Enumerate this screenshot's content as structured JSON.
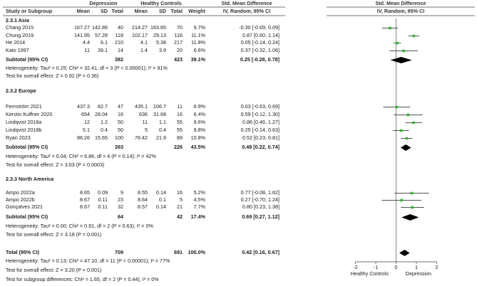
{
  "header": {
    "group1": "Depression",
    "group2": "Healthy Controls",
    "effect_title": "Std. Mean Difference",
    "effect_title_plot": "Std. Mean Difference",
    "study_col": "Study or Subgroup",
    "mean": "Mean",
    "sd": "SD",
    "total": "Total",
    "weight": "Weight",
    "method": "IV, Random, 95% CI",
    "method_plot": "IV, Random, 95% CI"
  },
  "subgroups": [
    {
      "title": "2.3.1 Asia",
      "studies": [
        {
          "name": "Chang 2015",
          "m1": "167.27",
          "sd1": "142.86",
          "n1": "40",
          "m2": "214.27",
          "sd2": "163.65",
          "n2": "70",
          "weight": "9.7%",
          "ci": "-0.30 [-0.69, 0.09]"
        },
        {
          "name": "Chung 2019",
          "m1": "141.95",
          "sd1": "57.28",
          "n1": "118",
          "m2": "102.17",
          "sd2": "29.13",
          "n2": "116",
          "weight": "11.1%",
          "ci": "0.87 [0.60, 1.14]"
        },
        {
          "name": "He 2014",
          "m1": "4.4",
          "sd1": "6.1",
          "n1": "210",
          "m2": "4.1",
          "sd2": "5.38",
          "n2": "217",
          "weight": "11.8%",
          "ci": "0.05 [-0.14, 0.24]"
        },
        {
          "name": "Kato 1997",
          "m1": "11",
          "sd1": "39.1",
          "n1": "14",
          "m2": "1.4",
          "sd2": "3.9",
          "n2": "20",
          "weight": "6.6%",
          "ci": "0.37 [-0.32, 1.06]"
        }
      ],
      "subtotal": {
        "label": "Subtotal (95% CI)",
        "n1": "382",
        "n2": "423",
        "weight": "39.1%",
        "ci": "0.25 [-0.28, 0.78]"
      },
      "heterogeneity": "Heterogeneity: Tau² = 0.25; Chi² = 32.41, df = 3 (P < 0.00001); I² = 91%",
      "overall": "Test for overall effect: Z = 0.92 (P = 0.36)"
    },
    {
      "title": "2.3.2 Europe",
      "studies": [
        {
          "name": "Fernström 2021",
          "m1": "437.3",
          "sd1": "62.7",
          "n1": "47",
          "m2": "435.1",
          "sd2": "106.7",
          "n2": "11",
          "weight": "6.9%",
          "ci": "0.03 [-0.63, 0.69]"
        },
        {
          "name": "Kerstin Kuffner 2020",
          "m1": "654",
          "sd1": "28.04",
          "n1": "16",
          "m2": "636",
          "sd2": "31.68",
          "n2": "16",
          "weight": "6.4%",
          "ci": "0.59 [-0.12, 1.30]"
        },
        {
          "name": "Lindqvist 2018a",
          "m1": "12",
          "sd1": "1.2",
          "n1": "50",
          "m2": "11",
          "sd2": "1.1",
          "n2": "55",
          "weight": "9.6%",
          "ci": "0.86 [0.46, 1.27]"
        },
        {
          "name": "Lindqvist 2018b",
          "m1": "5.1",
          "sd1": "0.4",
          "n1": "50",
          "m2": "5",
          "sd2": "0.4",
          "n2": "55",
          "weight": "9.8%",
          "ci": "0.25 [-0.14, 0.63]"
        },
        {
          "name": "Ryan 2023",
          "m1": "86.26",
          "sd1": "15.65",
          "n1": "100",
          "m2": "76.42",
          "sd2": "21.9",
          "n2": "89",
          "weight": "10.8%",
          "ci": "0.52 [0.23, 0.81]"
        }
      ],
      "subtotal": {
        "label": "Subtotal (95% CI)",
        "n1": "263",
        "n2": "226",
        "weight": "43.5%",
        "ci": "0.48 [0.22, 0.74]"
      },
      "heterogeneity": "Heterogeneity: Tau² = 0.04; Chi² = 6.86, df = 4 (P = 0.14); I² = 42%",
      "overall": "Test for overall effect: Z = 3.63 (P = 0.0003)"
    },
    {
      "title": "2.3.3 North America",
      "studies": [
        {
          "name": "Ampo 2022a",
          "m1": "8.65",
          "sd1": "0.09",
          "n1": "9",
          "m2": "8.55",
          "sd2": "0.14",
          "n2": "16",
          "weight": "5.2%",
          "ci": "0.77 [-0.08, 1.62]"
        },
        {
          "name": "Ampo 2022b",
          "m1": "8.67",
          "sd1": "0.11",
          "n1": "23",
          "m2": "8.64",
          "sd2": "0.1",
          "n2": "5",
          "weight": "4.5%",
          "ci": "0.27 [-0.70, 1.24]"
        },
        {
          "name": "Gonçalves 2021",
          "m1": "8.67",
          "sd1": "0.11",
          "n1": "32",
          "m2": "8.57",
          "sd2": "0.14",
          "n2": "21",
          "weight": "7.7%",
          "ci": "0.80 [0.23, 1.38]"
        }
      ],
      "subtotal": {
        "label": "Subtotal (95% CI)",
        "n1": "64",
        "n2": "42",
        "weight": "17.4%",
        "ci": "0.69 [0.27, 1.12]"
      },
      "heterogeneity": "Heterogeneity: Tau² = 0.00; Chi² = 0.91, df = 2 (P = 0.63); I² = 0%",
      "overall": "Test for overall effect: Z = 3.18 (P = 0.001)"
    }
  ],
  "total": {
    "label": "Total (95% CI)",
    "n1": "709",
    "n2": "691",
    "weight": "100.0%",
    "ci": "0.42 [0.16, 0.67]",
    "heterogeneity": "Heterogeneity: Tau² = 0.13; Chi² = 47.10, df = 11 (P < 0.00001); I² = 77%",
    "overall": "Test for overall effect: Z = 3.20 (P = 0.001)",
    "subgroup_diff": "Test for subgroup differences: Chi² = 1.65, df = 2 (P = 0.44), I² = 0%"
  },
  "chart_data": {
    "type": "forest",
    "axis": {
      "min": -2,
      "max": 2,
      "ticks": [
        "-2",
        "-1",
        "0",
        "1",
        "2"
      ],
      "left_label": "Healthy Controls",
      "right_label": "Depression"
    },
    "studies": [
      {
        "est": -0.3,
        "lo": -0.69,
        "hi": 0.09
      },
      {
        "est": 0.87,
        "lo": 0.6,
        "hi": 1.14
      },
      {
        "est": 0.05,
        "lo": -0.14,
        "hi": 0.24
      },
      {
        "est": 0.37,
        "lo": -0.32,
        "hi": 1.06
      },
      {
        "est": 0.03,
        "lo": -0.63,
        "hi": 0.69
      },
      {
        "est": 0.59,
        "lo": -0.12,
        "hi": 1.3
      },
      {
        "est": 0.86,
        "lo": 0.46,
        "hi": 1.27
      },
      {
        "est": 0.25,
        "lo": -0.14,
        "hi": 0.63
      },
      {
        "est": 0.52,
        "lo": 0.23,
        "hi": 0.81
      },
      {
        "est": 0.77,
        "lo": -0.08,
        "hi": 1.62
      },
      {
        "est": 0.27,
        "lo": -0.7,
        "hi": 1.24
      },
      {
        "est": 0.8,
        "lo": 0.23,
        "hi": 1.38
      }
    ],
    "diamonds": [
      {
        "est": 0.25,
        "lo": -0.28,
        "hi": 0.78
      },
      {
        "est": 0.48,
        "lo": 0.22,
        "hi": 0.74
      },
      {
        "est": 0.69,
        "lo": 0.27,
        "hi": 1.12
      },
      {
        "est": 0.42,
        "lo": 0.16,
        "hi": 0.67
      }
    ],
    "colors": {
      "point": "#2db92d",
      "line": "#1a1a1a",
      "diamond": "#000000"
    }
  }
}
